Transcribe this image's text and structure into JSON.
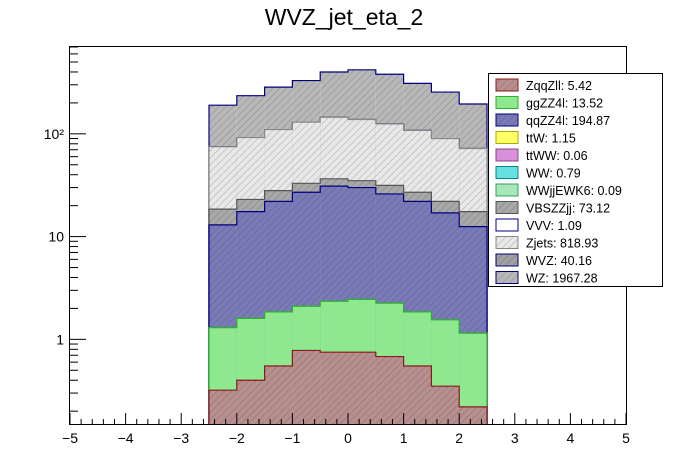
{
  "chart_data": {
    "type": "bar",
    "title": "WVZ_jet_eta_2",
    "xlabel": "",
    "ylabel": "",
    "stacked": true,
    "yscale": "log",
    "xlim": [
      -5,
      5
    ],
    "ylim": [
      0.15,
      700
    ],
    "xticks": [
      -5,
      -4,
      -3,
      -2,
      -1,
      0,
      1,
      2,
      3,
      4,
      5
    ],
    "xtick_labels": [
      "−5",
      "−4",
      "−3",
      "−2",
      "−1",
      "0",
      "1",
      "2",
      "3",
      "4",
      "5"
    ],
    "yticks": [
      1,
      10,
      100
    ],
    "ytick_labels": [
      "1",
      "10",
      "10²"
    ],
    "grid": false,
    "legend_position": "top-right",
    "bin_edges": [
      -2.5,
      -2.0,
      -1.5,
      -1.0,
      -0.5,
      0.0,
      0.5,
      1.0,
      1.5,
      2.0,
      2.5
    ],
    "stack_top_totals": {
      "ZqqZll": [
        0.32,
        0.4,
        0.55,
        0.78,
        0.75,
        0.75,
        0.68,
        0.55,
        0.35,
        0.22
      ],
      "ggZZ4l": [
        1.3,
        1.6,
        1.85,
        2.1,
        2.35,
        2.45,
        2.25,
        1.85,
        1.55,
        1.15
      ],
      "qqZZ4l": [
        13,
        17.5,
        22,
        27,
        31,
        30,
        26,
        22,
        17,
        12.5
      ],
      "VBSZZjj": [
        18.5,
        23,
        28,
        33,
        36.5,
        35,
        31.5,
        27,
        22,
        17.5
      ],
      "Zjets": [
        75,
        92,
        110,
        130,
        145,
        138,
        125,
        108,
        90,
        72
      ],
      "WVZ": [
        75,
        92,
        110,
        130,
        145,
        138,
        125,
        108,
        90,
        72
      ],
      "WZ": [
        190,
        235,
        285,
        330,
        400,
        420,
        380,
        310,
        255,
        195
      ]
    },
    "series": [
      {
        "name": "ZqqZll",
        "total": "5.42",
        "fill": "#b78f8f",
        "stroke": "#8a1a1a",
        "hatch": true
      },
      {
        "name": "ggZZ4l",
        "total": "13.52",
        "fill": "#8fe88f",
        "stroke": "#2ab22a",
        "hatch": false
      },
      {
        "name": "qqZZ4l",
        "total": "194.87",
        "fill": "#7a7ab8",
        "stroke": "#00007f",
        "hatch": true
      },
      {
        "name": "ttW",
        "total": "1.15",
        "fill": "#ffff66",
        "stroke": "#aaaa00",
        "hatch": false
      },
      {
        "name": "ttWW",
        "total": "0.06",
        "fill": "#d890d8",
        "stroke": "#884488",
        "hatch": false
      },
      {
        "name": "WW",
        "total": "0.79",
        "fill": "#66e0e0",
        "stroke": "#008888",
        "hatch": false
      },
      {
        "name": "WWjjEWK6",
        "total": "0.09",
        "fill": "#a8e8b8",
        "stroke": "#30a060",
        "hatch": false
      },
      {
        "name": "VBSZZjj",
        "total": "73.12",
        "fill": "#a8a8a8",
        "stroke": "#555555",
        "hatch": true
      },
      {
        "name": "VVV",
        "total": "1.09",
        "fill": "#ffffff",
        "stroke": "#00007f",
        "hatch": false
      },
      {
        "name": "Zjets",
        "total": "818.93",
        "fill": "#e8e8e8",
        "stroke": "#888888",
        "hatch": true
      },
      {
        "name": "WVZ",
        "total": "40.16",
        "fill": "#a0a0a0",
        "stroke": "#00007f",
        "hatch": true
      },
      {
        "name": "WZ",
        "total": "1967.28",
        "fill": "#b8b8b8",
        "stroke": "#00007f",
        "hatch": true
      }
    ],
    "draw_order": [
      "WZ",
      "WVZ",
      "Zjets",
      "VBSZZjj",
      "qqZZ4l",
      "ggZZ4l",
      "ZqqZll"
    ]
  }
}
